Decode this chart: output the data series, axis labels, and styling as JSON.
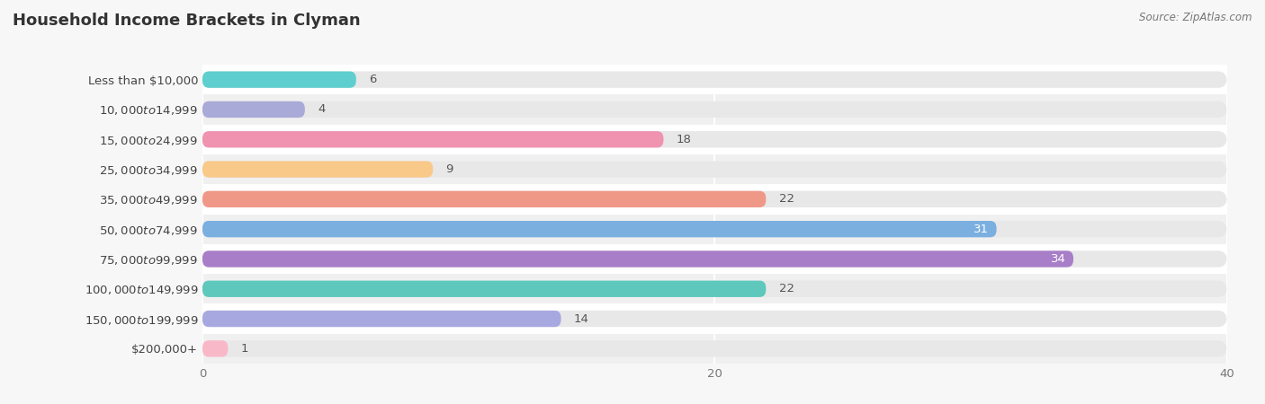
{
  "title": "Household Income Brackets in Clyman",
  "source": "Source: ZipAtlas.com",
  "categories": [
    "Less than $10,000",
    "$10,000 to $14,999",
    "$15,000 to $24,999",
    "$25,000 to $34,999",
    "$35,000 to $49,999",
    "$50,000 to $74,999",
    "$75,000 to $99,999",
    "$100,000 to $149,999",
    "$150,000 to $199,999",
    "$200,000+"
  ],
  "values": [
    6,
    4,
    18,
    9,
    22,
    31,
    34,
    22,
    14,
    1
  ],
  "bar_colors": [
    "#5ecece",
    "#aaaad8",
    "#f093b0",
    "#f9c98a",
    "#f09888",
    "#7aafe0",
    "#a87ec8",
    "#5ec8bc",
    "#a8a8e0",
    "#f9b8c8"
  ],
  "xlim": [
    0,
    40
  ],
  "xticks": [
    0,
    20,
    40
  ],
  "bg_color": "#f7f7f7",
  "bar_bg_color": "#e8e8e8",
  "row_bg_colors": [
    "#ffffff",
    "#f0f0f0"
  ],
  "title_fontsize": 13,
  "label_fontsize": 9.5,
  "value_fontsize": 9.5
}
